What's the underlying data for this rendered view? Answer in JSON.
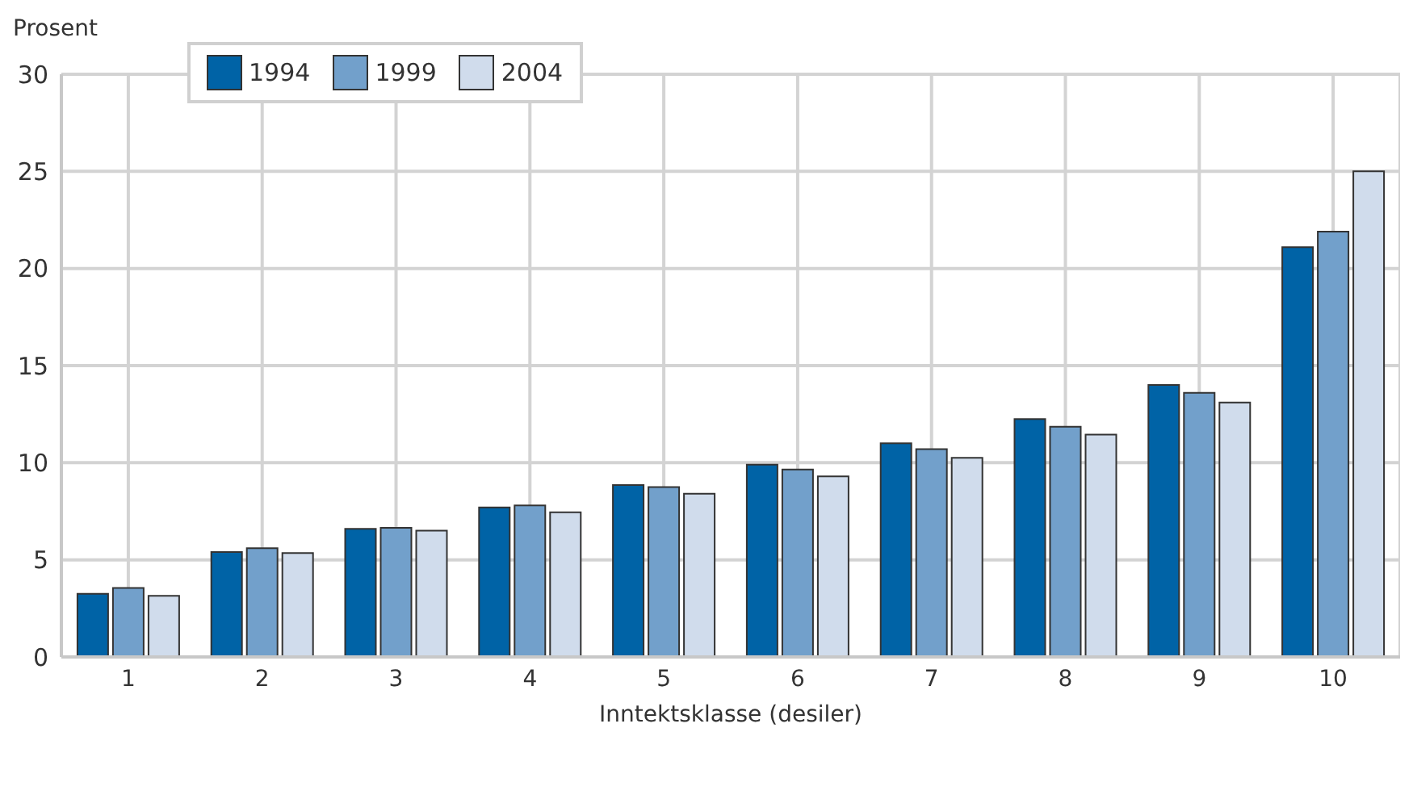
{
  "chart_data": {
    "type": "bar",
    "xlabel": "Inntektsklasse (desiler)",
    "ylabel": "Prosent",
    "categories": [
      "1",
      "2",
      "3",
      "4",
      "5",
      "6",
      "7",
      "8",
      "9",
      "10"
    ],
    "series": [
      {
        "name": "1994",
        "color": "#0063a6",
        "values": [
          3.25,
          5.4,
          6.6,
          7.7,
          8.85,
          9.9,
          11.0,
          12.25,
          14.0,
          21.1
        ]
      },
      {
        "name": "1999",
        "color": "#72a0cb",
        "values": [
          3.55,
          5.6,
          6.65,
          7.8,
          8.75,
          9.65,
          10.7,
          11.85,
          13.6,
          21.9
        ]
      },
      {
        "name": "2004",
        "color": "#d0dcec",
        "values": [
          3.15,
          5.35,
          6.5,
          7.45,
          8.4,
          9.3,
          10.25,
          11.45,
          13.1,
          25.0
        ]
      }
    ],
    "ylim": [
      0,
      30
    ],
    "yticks": [
      0,
      5,
      10,
      15,
      20,
      25,
      30
    ],
    "grid": true,
    "legend": "top left"
  }
}
